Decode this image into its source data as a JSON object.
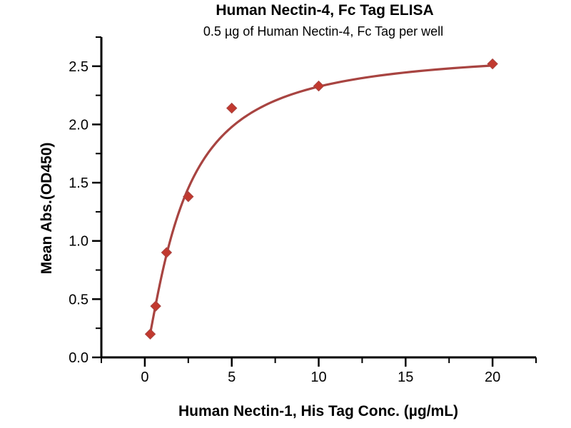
{
  "page": {
    "background": "#ffffff",
    "text_color": "#000000"
  },
  "chart_data": {
    "type": "line",
    "title": "Human Nectin-4, Fc Tag ELISA",
    "subtitle": "0.5 µg of Human Nectin-4, Fc Tag per well",
    "xlabel": "Human Nectin-1, His Tag Conc. (µg/mL)",
    "ylabel": "Mean Abs.(OD450)",
    "x": [
      0.3125,
      0.625,
      1.25,
      2.5,
      5,
      10,
      20
    ],
    "y": [
      0.2,
      0.44,
      0.9,
      1.38,
      2.14,
      2.33,
      2.52
    ],
    "xlim": [
      -2.5,
      22.5
    ],
    "ylim": [
      0,
      2.75
    ],
    "x_major_ticks": [
      {
        "value": 0,
        "label": "0"
      },
      {
        "value": 5,
        "label": "5"
      },
      {
        "value": 10,
        "label": "10"
      },
      {
        "value": 15,
        "label": "15"
      },
      {
        "value": 20,
        "label": "20"
      }
    ],
    "y_major_ticks": [
      {
        "value": 0,
        "label": "0.0"
      },
      {
        "value": 0.5,
        "label": "0.5"
      },
      {
        "value": 1,
        "label": "1.0"
      },
      {
        "value": 1.5,
        "label": "1.5"
      },
      {
        "value": 2,
        "label": "2.0"
      },
      {
        "value": 2.5,
        "label": "2.5"
      }
    ],
    "x_minor_tick_values": [
      -2.5,
      2.5,
      7.5,
      12.5,
      17.5,
      22.5
    ],
    "y_minor_tick_values": [
      0.25,
      0.75,
      1.25,
      1.75,
      2.25,
      2.75
    ],
    "grid": false,
    "legend": "none",
    "marker": "diamond",
    "colors": {
      "line": "#A84441",
      "marker": "#C2392F",
      "axis": "#000000"
    },
    "fit_curve": {
      "model": "4PL",
      "bottom": 0,
      "top": 2.65,
      "ec50": 2.15,
      "hill": 1.28
    }
  }
}
